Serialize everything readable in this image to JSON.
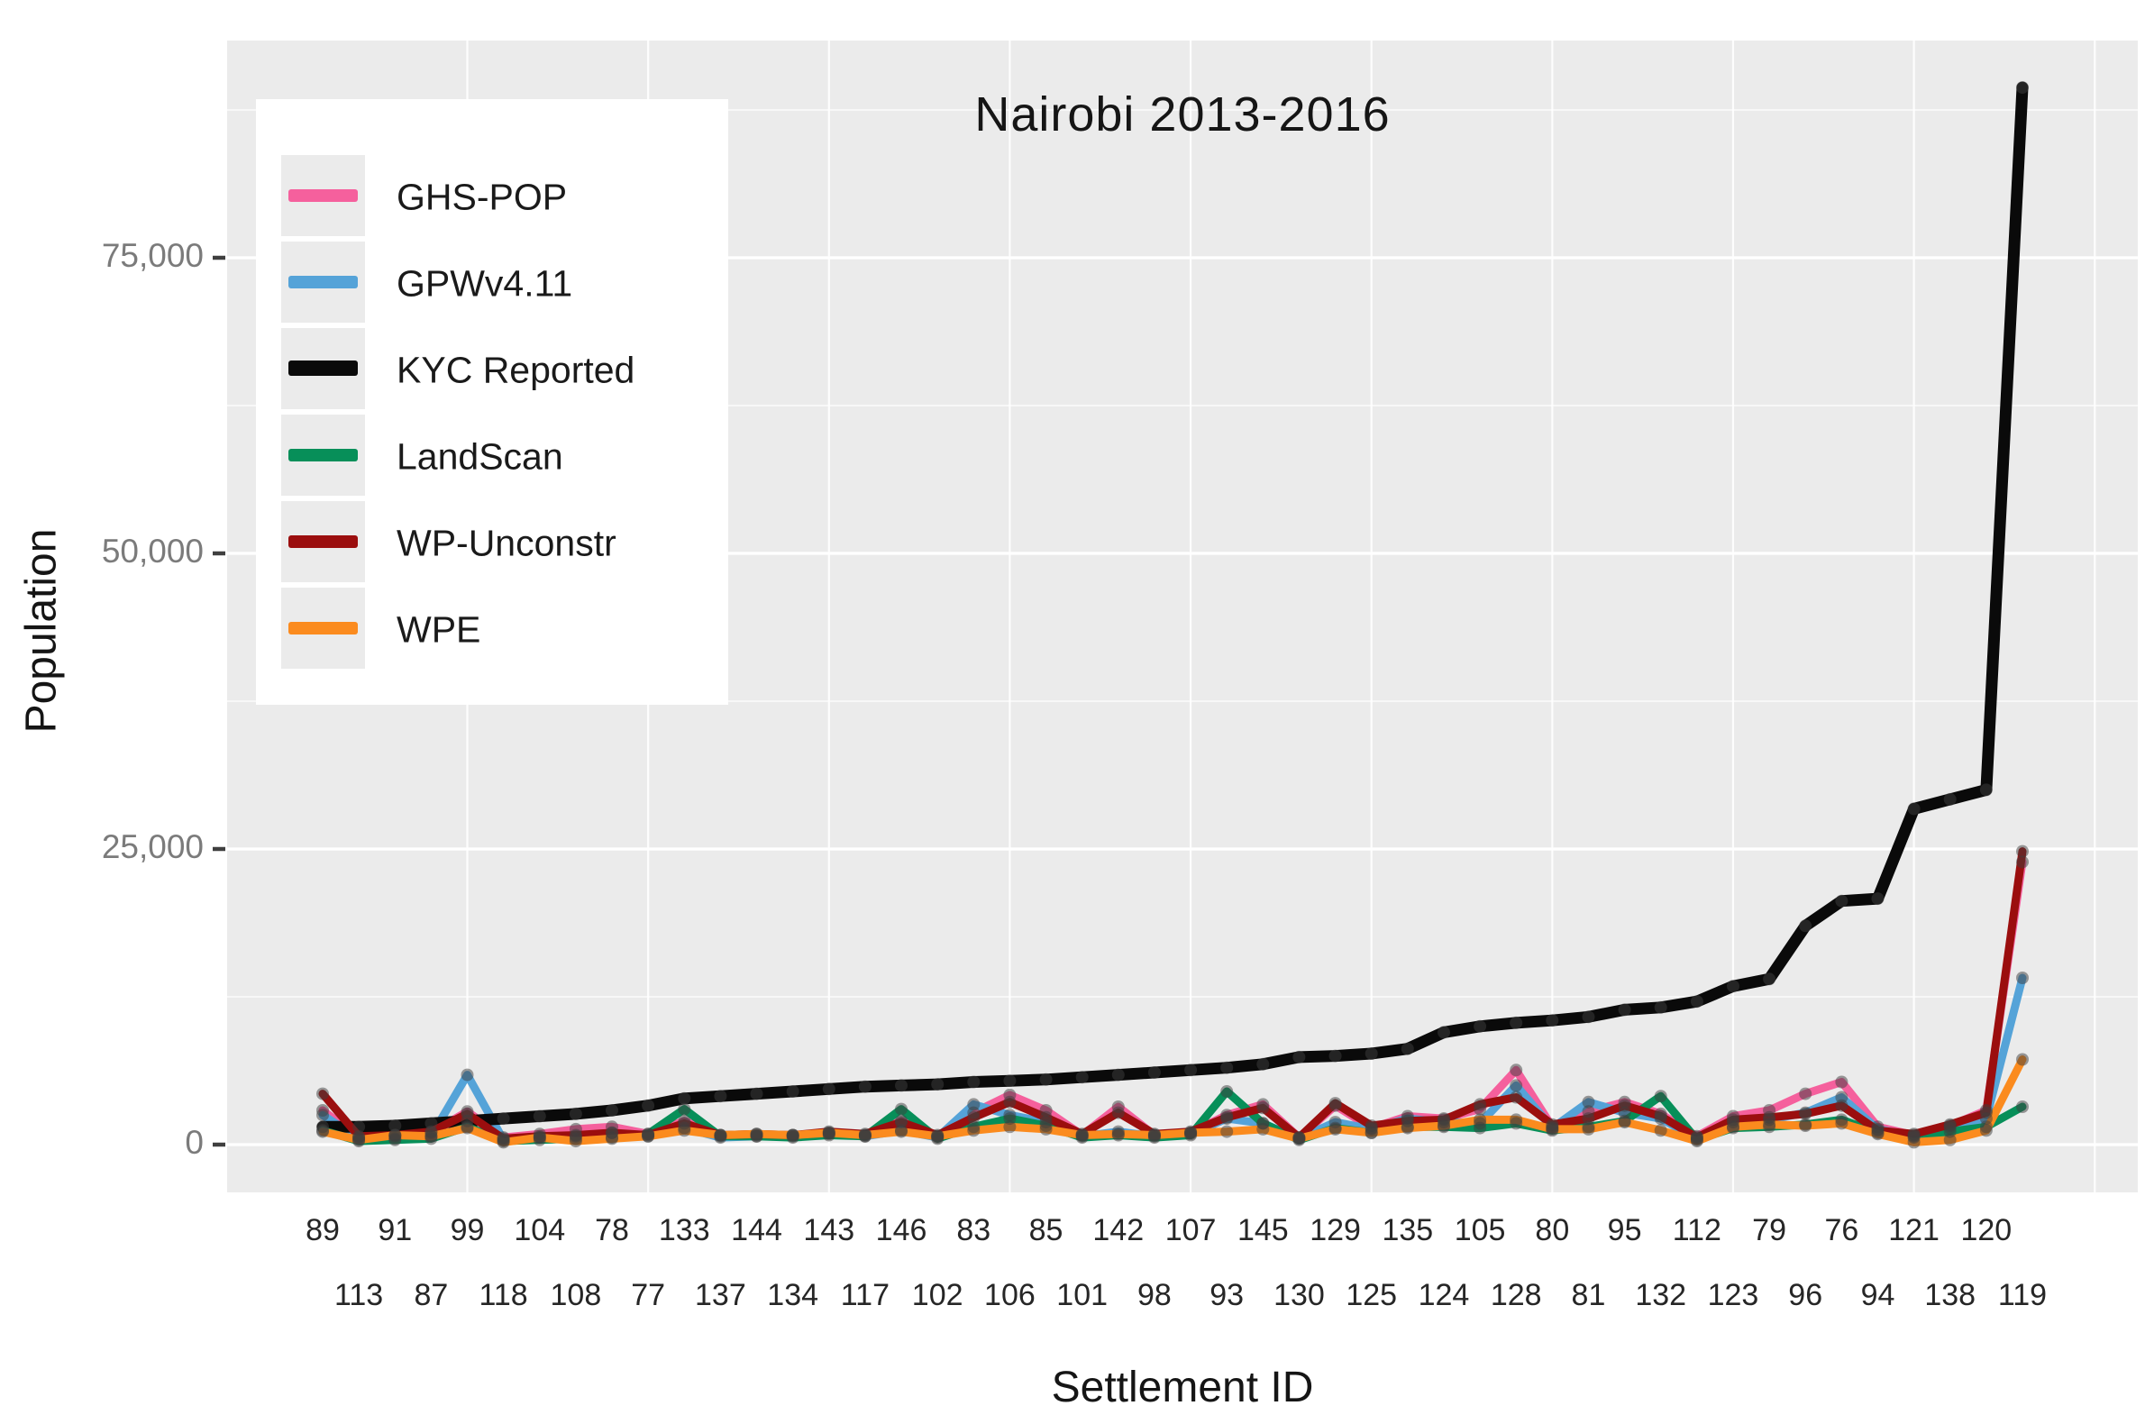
{
  "chart": {
    "title": "Nairobi 2013-2016",
    "x_axis": {
      "label": "Settlement ID"
    },
    "y_axis": {
      "label": "Population",
      "ticks": [
        {
          "label": "0",
          "value": 0
        },
        {
          "label": "25,000",
          "value": 25000
        },
        {
          "label": "50,000",
          "value": 50000
        },
        {
          "label": "75,000",
          "value": 75000
        }
      ]
    }
  },
  "chart_data": {
    "type": "line",
    "title": "Nairobi 2013-2016",
    "xlabel": "Settlement ID",
    "ylabel": "Population",
    "ylim": [
      0,
      93000
    ],
    "grid": "on",
    "panel_bg": "#ebebeb",
    "gridline_color": "#ffffff",
    "point_color": "#3d3d3d",
    "legend_position": "top-left-inside",
    "y_major_gridlines": [
      0,
      25000,
      50000,
      75000
    ],
    "y_minor_gridlines": [
      12500,
      37500,
      62500,
      87500
    ],
    "categories": [
      "89",
      "113",
      "91",
      "87",
      "99",
      "118",
      "104",
      "108",
      "78",
      "77",
      "133",
      "137",
      "144",
      "134",
      "143",
      "117",
      "146",
      "102",
      "83",
      "106",
      "85",
      "101",
      "142",
      "98",
      "107",
      "93",
      "145",
      "130",
      "129",
      "125",
      "135",
      "124",
      "105",
      "128",
      "80",
      "81",
      "95",
      "132",
      "112",
      "123",
      "79",
      "96",
      "76",
      "94",
      "121",
      "138",
      "120",
      "119"
    ],
    "series": [
      {
        "name": "GHS-POP",
        "color": "#f5609d",
        "values": [
          2900,
          600,
          700,
          1000,
          2800,
          600,
          900,
          1300,
          1500,
          900,
          2000,
          800,
          800,
          800,
          1000,
          800,
          2000,
          700,
          2700,
          4200,
          2900,
          800,
          3200,
          800,
          1000,
          2500,
          3400,
          600,
          3300,
          1400,
          2400,
          2200,
          3000,
          6300,
          1500,
          2800,
          3600,
          2600,
          700,
          2400,
          2900,
          4300,
          5300,
          1500,
          800,
          1600,
          2900,
          23900
        ]
      },
      {
        "name": "GPWv4.11",
        "color": "#55a3d8",
        "values": [
          2500,
          500,
          500,
          700,
          5900,
          400,
          600,
          700,
          1000,
          700,
          1400,
          600,
          700,
          700,
          900,
          700,
          1200,
          600,
          3400,
          2500,
          1900,
          700,
          1100,
          700,
          900,
          2200,
          1800,
          500,
          1900,
          1300,
          2200,
          1900,
          1800,
          5000,
          1400,
          3600,
          2700,
          2200,
          500,
          1900,
          2100,
          2700,
          4000,
          1300,
          700,
          1400,
          2200,
          14100
        ]
      },
      {
        "name": "KYC Reported",
        "color": "#0a0a0a",
        "values": [
          1500,
          1500,
          1600,
          1800,
          2000,
          2200,
          2400,
          2600,
          2900,
          3300,
          3900,
          4100,
          4300,
          4500,
          4700,
          4900,
          5000,
          5100,
          5300,
          5400,
          5500,
          5700,
          5900,
          6100,
          6300,
          6500,
          6800,
          7400,
          7500,
          7700,
          8100,
          9500,
          10000,
          10300,
          10500,
          10800,
          11400,
          11600,
          12100,
          13400,
          14000,
          18500,
          20600,
          20800,
          28400,
          29200,
          30000,
          89400
        ]
      },
      {
        "name": "LandScan",
        "color": "#078f59",
        "values": [
          1200,
          300,
          400,
          500,
          1500,
          300,
          400,
          500,
          600,
          900,
          3000,
          700,
          700,
          600,
          800,
          700,
          3000,
          500,
          1500,
          2200,
          1600,
          600,
          800,
          600,
          800,
          4500,
          1800,
          400,
          1400,
          1000,
          1500,
          1500,
          1400,
          1800,
          1200,
          1500,
          2000,
          4100,
          400,
          1400,
          1500,
          1700,
          2100,
          1000,
          600,
          1100,
          1500,
          3200
        ]
      },
      {
        "name": "WP-Unconstr",
        "color": "#9b0e0e",
        "values": [
          4300,
          700,
          800,
          1100,
          2600,
          500,
          700,
          800,
          1000,
          800,
          1800,
          800,
          900,
          800,
          1100,
          900,
          1900,
          800,
          2300,
          3600,
          2300,
          900,
          2700,
          900,
          1100,
          2300,
          3100,
          600,
          3500,
          1600,
          2000,
          2100,
          3400,
          4000,
          1700,
          2200,
          3300,
          2400,
          600,
          2100,
          2300,
          2600,
          3300,
          1200,
          900,
          1700,
          2700,
          24800
        ]
      },
      {
        "name": "WPE",
        "color": "#fb8b1e",
        "values": [
          1100,
          400,
          800,
          700,
          1400,
          200,
          600,
          300,
          500,
          700,
          1200,
          800,
          900,
          800,
          1000,
          800,
          1100,
          700,
          1200,
          1500,
          1300,
          800,
          900,
          800,
          1000,
          1100,
          1300,
          500,
          1300,
          1000,
          1400,
          1600,
          2100,
          2100,
          1300,
          1300,
          1900,
          1200,
          300,
          1500,
          1700,
          1600,
          1800,
          900,
          200,
          400,
          1200,
          7200
        ]
      }
    ],
    "legend": [
      {
        "name": "GHS-POP",
        "color": "#f5609d"
      },
      {
        "name": "GPWv4.11",
        "color": "#55a3d8"
      },
      {
        "name": "KYC Reported",
        "color": "#0a0a0a"
      },
      {
        "name": "LandScan",
        "color": "#078f59"
      },
      {
        "name": "WP-Unconstr",
        "color": "#9b0e0e"
      },
      {
        "name": "WPE",
        "color": "#fb8b1e"
      }
    ]
  }
}
